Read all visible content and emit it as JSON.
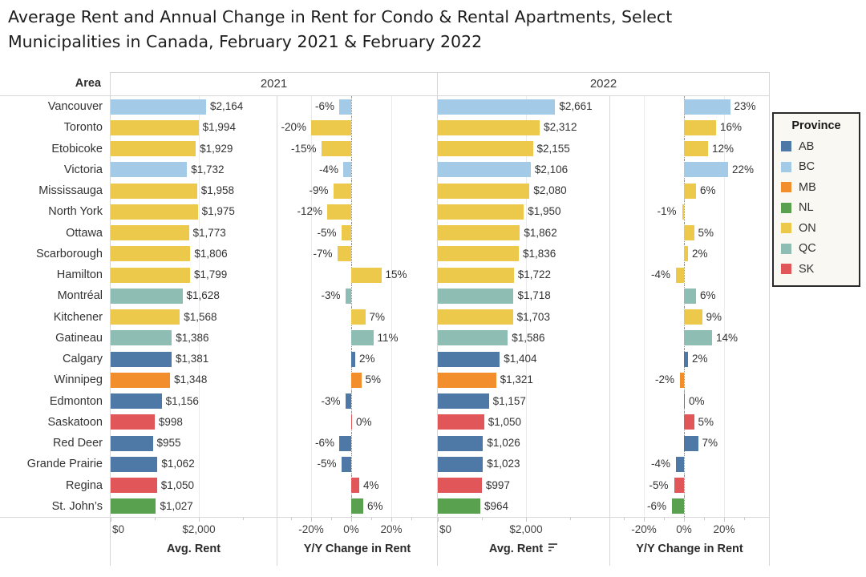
{
  "title": {
    "line1": "Average Rent and Annual Change in Rent for Condo & Rental Apartments, Select",
    "line2": "Municipalities in Canada, February 2021 & February 2022"
  },
  "header": {
    "area": "Area",
    "year1": "2021",
    "year2": "2022"
  },
  "axes": {
    "rent_ticks": [
      "$0",
      "$2,000"
    ],
    "change_ticks": [
      "-20%",
      "0%",
      "20%"
    ],
    "rent_label": "Avg. Rent",
    "change_label": "Y/Y Change in Rent",
    "sort_icon": "sort-descending"
  },
  "legend": {
    "title": "Province",
    "items": [
      {
        "abbr": "AB",
        "color": "#4e79a7"
      },
      {
        "abbr": "BC",
        "color": "#a3cbe8"
      },
      {
        "abbr": "MB",
        "color": "#f28e2b"
      },
      {
        "abbr": "NL",
        "color": "#59a14f"
      },
      {
        "abbr": "ON",
        "color": "#edc94b"
      },
      {
        "abbr": "QC",
        "color": "#8ebdb4"
      },
      {
        "abbr": "SK",
        "color": "#e15759"
      }
    ]
  },
  "chart_data": {
    "type": "bar",
    "title": "Average Rent and Annual Change in Rent for Condo & Rental Apartments, Select Municipalities in Canada, February 2021 & February 2022",
    "categories": [
      "Vancouver",
      "Toronto",
      "Etobicoke",
      "Victoria",
      "Mississauga",
      "North York",
      "Ottawa",
      "Scarborough",
      "Hamilton",
      "Montréal",
      "Kitchener",
      "Gatineau",
      "Calgary",
      "Winnipeg",
      "Edmonton",
      "Saskatoon",
      "Red Deer",
      "Grande Prairie",
      "Regina",
      "St. John’s"
    ],
    "province": [
      "BC",
      "ON",
      "ON",
      "BC",
      "ON",
      "ON",
      "ON",
      "ON",
      "ON",
      "QC",
      "ON",
      "QC",
      "AB",
      "MB",
      "AB",
      "SK",
      "AB",
      "AB",
      "SK",
      "NL"
    ],
    "series": [
      {
        "name": "Avg. Rent 2021",
        "values": [
          2164,
          1994,
          1929,
          1732,
          1958,
          1975,
          1773,
          1806,
          1799,
          1628,
          1568,
          1386,
          1381,
          1348,
          1156,
          998,
          955,
          1062,
          1050,
          1027
        ],
        "labels": [
          "$2,164",
          "$1,994",
          "$1,929",
          "$1,732",
          "$1,958",
          "$1,975",
          "$1,773",
          "$1,806",
          "$1,799",
          "$1,628",
          "$1,568",
          "$1,386",
          "$1,381",
          "$1,348",
          "$1,156",
          "$998",
          "$955",
          "$1,062",
          "$1,050",
          "$1,027"
        ]
      },
      {
        "name": "Y/Y Change in Rent 2021",
        "values": [
          -6,
          -20,
          -15,
          -4,
          -9,
          -12,
          -5,
          -7,
          15,
          -3,
          7,
          11,
          2,
          5,
          -3,
          0,
          -6,
          -5,
          4,
          6
        ],
        "labels": [
          "-6%",
          "-20%",
          "-15%",
          "-4%",
          "-9%",
          "-12%",
          "-5%",
          "-7%",
          "15%",
          "-3%",
          "7%",
          "11%",
          "2%",
          "5%",
          "-3%",
          "0%",
          "-6%",
          "-5%",
          "4%",
          "6%"
        ]
      },
      {
        "name": "Avg. Rent 2022",
        "values": [
          2661,
          2312,
          2155,
          2106,
          2080,
          1950,
          1862,
          1836,
          1722,
          1718,
          1703,
          1586,
          1404,
          1321,
          1157,
          1050,
          1026,
          1023,
          997,
          964
        ],
        "labels": [
          "$2,661",
          "$2,312",
          "$2,155",
          "$2,106",
          "$2,080",
          "$1,950",
          "$1,862",
          "$1,836",
          "$1,722",
          "$1,718",
          "$1,703",
          "$1,586",
          "$1,404",
          "$1,321",
          "$1,157",
          "$1,050",
          "$1,026",
          "$1,023",
          "$997",
          "$964"
        ]
      },
      {
        "name": "Y/Y Change in Rent 2022",
        "values": [
          23,
          16,
          12,
          22,
          6,
          -1,
          5,
          2,
          -4,
          6,
          9,
          14,
          2,
          -2,
          0,
          5,
          7,
          -4,
          -5,
          -6
        ],
        "labels": [
          "23%",
          "16%",
          "12%",
          "22%",
          "6%",
          "-1%",
          "5%",
          "2%",
          "-4%",
          "6%",
          "9%",
          "14%",
          "2%",
          "-2%",
          "0%",
          "5%",
          "7%",
          "-4%",
          "-5%",
          "-6%"
        ]
      }
    ],
    "rent_axis": {
      "tick_values": [
        0,
        2000
      ],
      "approx_max": 3780
    },
    "change_axis": {
      "tick_values": [
        -20,
        0,
        20
      ],
      "approx_range": [
        -37,
        43
      ]
    },
    "grid": "light vertical gridlines; dotted zero line in % panels",
    "legend_position": "right"
  }
}
